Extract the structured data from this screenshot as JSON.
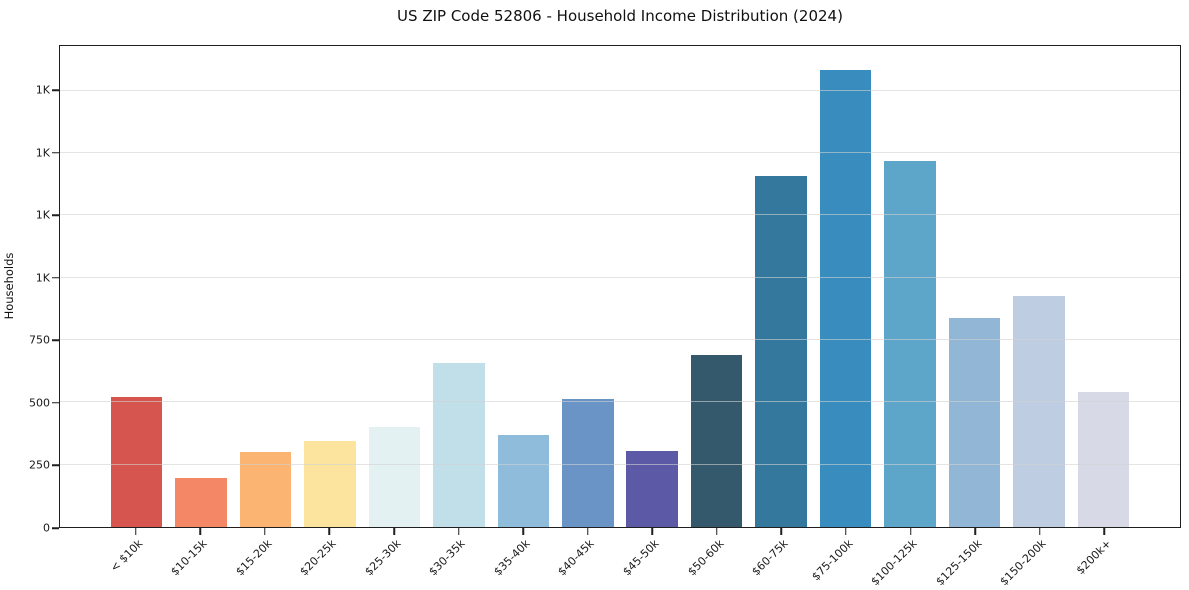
{
  "chart_data": {
    "type": "bar",
    "title": "US ZIP Code 52806 - Household Income Distribution (2024)",
    "xlabel": "",
    "ylabel": "Households",
    "categories": [
      "< $10k",
      "$10-15k",
      "$15-20k",
      "$20-25k",
      "$25-30k",
      "$30-35k",
      "$35-40k",
      "$40-45k",
      "$45-50k",
      "$50-60k",
      "$60-75k",
      "$75-100k",
      "$100-125k",
      "$125-150k",
      "$150-200k",
      "$200k+"
    ],
    "values": [
      520,
      195,
      300,
      345,
      400,
      660,
      370,
      515,
      305,
      690,
      1410,
      1835,
      1470,
      840,
      925,
      540
    ],
    "bar_colors": [
      "#d6554f",
      "#f48766",
      "#fbb471",
      "#fde49e",
      "#e4f1f3",
      "#c1dfe9",
      "#90bcdb",
      "#6b94c6",
      "#5c5aa7",
      "#35596c",
      "#35789e",
      "#388cbe",
      "#5ea6c9",
      "#92b7d6",
      "#becde1",
      "#d7d9e7"
    ],
    "ylim": [
      0,
      1930
    ],
    "yticks": [
      {
        "value": 0,
        "label": "0"
      },
      {
        "value": 250,
        "label": "250"
      },
      {
        "value": 500,
        "label": "500"
      },
      {
        "value": 750,
        "label": "750"
      },
      {
        "value": 1000,
        "label": "1K"
      },
      {
        "value": 1250,
        "label": "1K"
      },
      {
        "value": 1500,
        "label": "1K"
      },
      {
        "value": 1750,
        "label": "1K"
      }
    ],
    "grid": "horizontal",
    "legend": "none",
    "colors": {
      "grid": "#e7e7e7",
      "spine": "#1f1f1f",
      "text": "#1a1a1a",
      "background": "#ffffff"
    }
  }
}
